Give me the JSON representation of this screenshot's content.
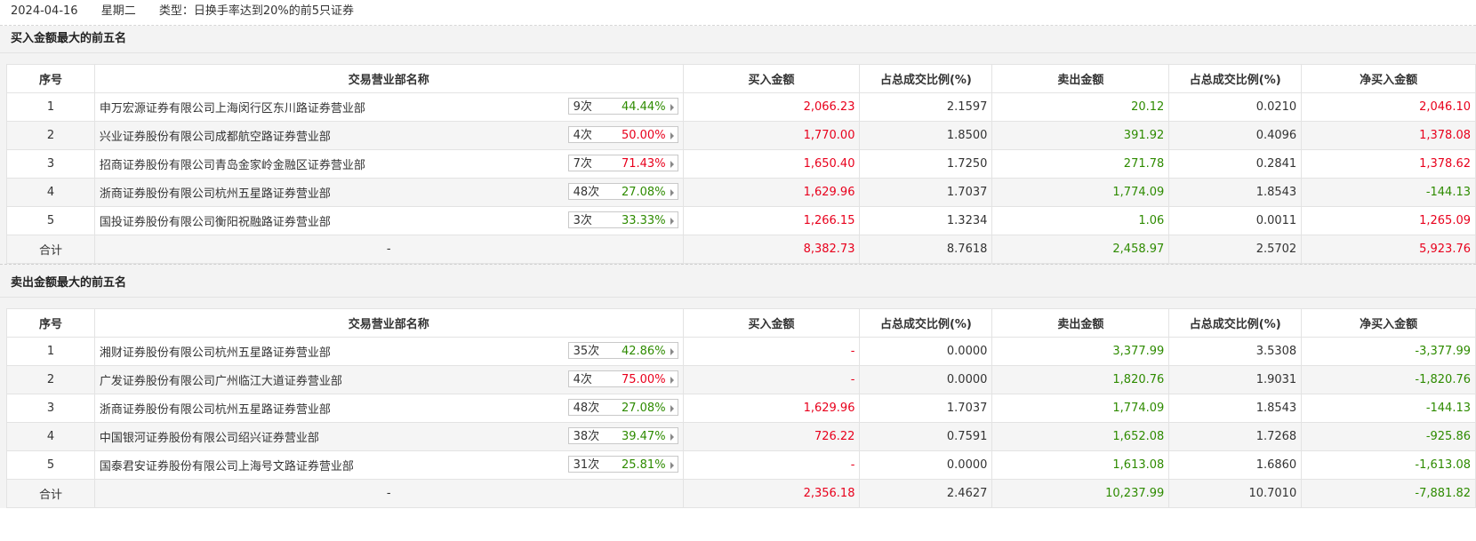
{
  "header": {
    "date": "2024-04-16",
    "weekday": "星期二",
    "type": "类型：日换手率达到20%的前5只证券"
  },
  "columns": [
    "序号",
    "交易营业部名称",
    "买入金额",
    "占总成交比例(%)",
    "卖出金额",
    "占总成交比例(%)",
    "净买入金额"
  ],
  "buy_section": {
    "title": "买入金额最大的前五名",
    "rows": [
      {
        "no": "1",
        "name": "申万宏源证券有限公司上海闵行区东川路证券营业部",
        "times": "9次",
        "rate": "44.44%",
        "rate_color": "green",
        "buy": "2,066.23",
        "buy_pct": "2.1597",
        "sell": "20.12",
        "sell_pct": "0.0210",
        "net": "2,046.10",
        "net_color": "red"
      },
      {
        "no": "2",
        "name": "兴业证券股份有限公司成都航空路证券营业部",
        "times": "4次",
        "rate": "50.00%",
        "rate_color": "red",
        "buy": "1,770.00",
        "buy_pct": "1.8500",
        "sell": "391.92",
        "sell_pct": "0.4096",
        "net": "1,378.08",
        "net_color": "red"
      },
      {
        "no": "3",
        "name": "招商证券股份有限公司青岛金家岭金融区证券营业部",
        "times": "7次",
        "rate": "71.43%",
        "rate_color": "red",
        "buy": "1,650.40",
        "buy_pct": "1.7250",
        "sell": "271.78",
        "sell_pct": "0.2841",
        "net": "1,378.62",
        "net_color": "red"
      },
      {
        "no": "4",
        "name": "浙商证券股份有限公司杭州五星路证券营业部",
        "times": "48次",
        "rate": "27.08%",
        "rate_color": "green",
        "buy": "1,629.96",
        "buy_pct": "1.7037",
        "sell": "1,774.09",
        "sell_pct": "1.8543",
        "net": "-144.13",
        "net_color": "green"
      },
      {
        "no": "5",
        "name": "国投证券股份有限公司衡阳祝融路证券营业部",
        "times": "3次",
        "rate": "33.33%",
        "rate_color": "green",
        "buy": "1,266.15",
        "buy_pct": "1.3234",
        "sell": "1.06",
        "sell_pct": "0.0011",
        "net": "1,265.09",
        "net_color": "red"
      }
    ],
    "total": {
      "label": "合计",
      "name": "-",
      "buy": "8,382.73",
      "buy_pct": "8.7618",
      "sell": "2,458.97",
      "sell_pct": "2.5702",
      "net": "5,923.76",
      "net_color": "red"
    }
  },
  "sell_section": {
    "title": "卖出金额最大的前五名",
    "rows": [
      {
        "no": "1",
        "name": "湘财证券股份有限公司杭州五星路证券营业部",
        "times": "35次",
        "rate": "42.86%",
        "rate_color": "green",
        "buy": "-",
        "buy_pct": "0.0000",
        "sell": "3,377.99",
        "sell_pct": "3.5308",
        "net": "-3,377.99",
        "net_color": "green"
      },
      {
        "no": "2",
        "name": "广发证券股份有限公司广州临江大道证券营业部",
        "times": "4次",
        "rate": "75.00%",
        "rate_color": "red",
        "buy": "-",
        "buy_pct": "0.0000",
        "sell": "1,820.76",
        "sell_pct": "1.9031",
        "net": "-1,820.76",
        "net_color": "green"
      },
      {
        "no": "3",
        "name": "浙商证券股份有限公司杭州五星路证券营业部",
        "times": "48次",
        "rate": "27.08%",
        "rate_color": "green",
        "buy": "1,629.96",
        "buy_pct": "1.7037",
        "sell": "1,774.09",
        "sell_pct": "1.8543",
        "net": "-144.13",
        "net_color": "green"
      },
      {
        "no": "4",
        "name": "中国银河证券股份有限公司绍兴证券营业部",
        "times": "38次",
        "rate": "39.47%",
        "rate_color": "green",
        "buy": "726.22",
        "buy_pct": "0.7591",
        "sell": "1,652.08",
        "sell_pct": "1.7268",
        "net": "-925.86",
        "net_color": "green"
      },
      {
        "no": "5",
        "name": "国泰君安证券股份有限公司上海号文路证券营业部",
        "times": "31次",
        "rate": "25.81%",
        "rate_color": "green",
        "buy": "-",
        "buy_pct": "0.0000",
        "sell": "1,613.08",
        "sell_pct": "1.6860",
        "net": "-1,613.08",
        "net_color": "green"
      }
    ],
    "total": {
      "label": "合计",
      "name": "-",
      "buy": "2,356.18",
      "buy_pct": "2.4627",
      "sell": "10,237.99",
      "sell_pct": "10.7010",
      "net": "-7,881.82",
      "net_color": "green"
    }
  }
}
